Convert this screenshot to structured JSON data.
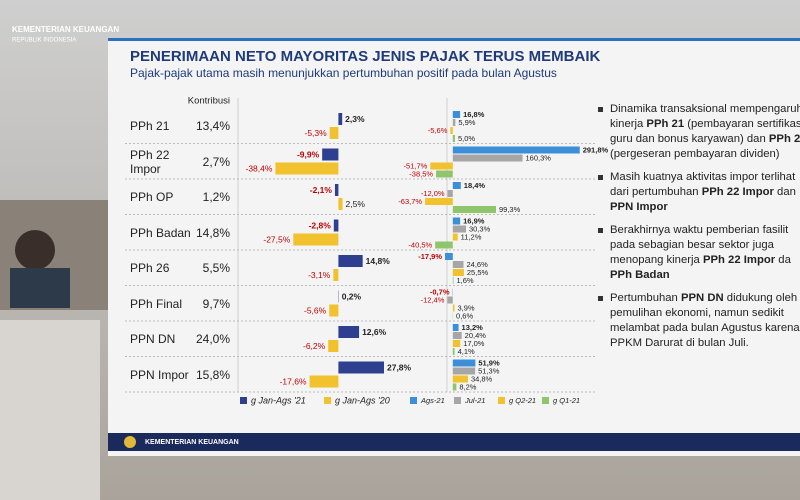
{
  "logo": {
    "line1": "KEMENTERIAN KEUANGAN",
    "line2": "REPUBLIK INDONESIA"
  },
  "slide": {
    "title": "PENERIMAAN NETO MAYORITAS JENIS PAJAK TERUS MEMBAIK",
    "subtitle": "Pajak-pajak utama masih menunjukkan pertumbuhan positif pada bulan Agustus",
    "contribution_header": "Kontribusi",
    "contributions": [
      "13,4%",
      "2,7%",
      "1,2%",
      "14,8%",
      "5,5%",
      "9,7%",
      "24,0%",
      "15,8%"
    ],
    "bullets": [
      [
        [
          "Dinamika transaksional mempengaruh"
        ],
        [
          "kinerja ",
          "PPh 21",
          " (pembayaran sertifikas"
        ],
        [
          "guru dan bonus karyawan) dan ",
          "PPh 2"
        ],
        [
          "(pergeseran pembayaran dividen)"
        ]
      ],
      [
        [
          "Masih kuatnya aktivitas impor terlihat"
        ],
        [
          "dari pertumbuhan ",
          "PPh 22 Impor",
          " dan"
        ],
        [
          "PPN Impor"
        ]
      ],
      [
        [
          "Berakhirnya waktu pemberian fasilit"
        ],
        [
          "pada sebagian besar sektor juga"
        ],
        [
          "menopang kinerja ",
          "PPh 22 Impor",
          " da"
        ],
        [
          "PPh Badan"
        ]
      ],
      [
        [
          "Pertumbuhan ",
          "PPN DN",
          " didukung oleh"
        ],
        [
          "pemulihan ekonomi, namun sedikit"
        ],
        [
          "melambat pada bulan Agustus karena"
        ],
        [
          "PPKM Darurat di bulan Juli."
        ]
      ]
    ],
    "footer": "KEMENTERIAN KEUANGAN"
  },
  "chart_data": [
    {
      "type": "bar",
      "orientation": "horizontal",
      "categories": [
        "PPh 21",
        "PPh 22 Impor",
        "PPh OP",
        "PPh Badan",
        "PPh 26",
        "PPh Final",
        "PPN DN",
        "PPN Impor"
      ],
      "xlim": [
        -60,
        65
      ],
      "series": [
        {
          "name": "g Jan-Ags '21",
          "color": "#2e3f8f",
          "values": [
            2.3,
            -9.9,
            -2.1,
            -2.8,
            14.8,
            0.2,
            12.6,
            27.8
          ],
          "value_labels": [
            "2,3%",
            "-9,9%",
            "-2,1%",
            "-2,8%",
            "14,8%",
            "0,2%",
            "12,6%",
            "27,8%"
          ]
        },
        {
          "name": "g Jan-Ags '20",
          "color": "#f2c12e",
          "values": [
            -5.3,
            -38.4,
            2.5,
            -27.5,
            -3.1,
            -5.6,
            -6.2,
            -17.6
          ],
          "value_labels": [
            "-5,3%",
            "-38,4%",
            "2,5%",
            "-27,5%",
            "-3,1%",
            "-5,6%",
            "-6,2%",
            "-17,6%"
          ]
        }
      ]
    },
    {
      "type": "bar",
      "orientation": "horizontal",
      "xlim": [
        -80,
        320
      ],
      "series": [
        {
          "name": "Ags-21",
          "color": "#3b8fd9",
          "values": [
            16.8,
            291.8,
            18.4,
            16.9,
            -17.9,
            -0.7,
            13.2,
            51.9
          ],
          "value_labels": [
            "16,8%",
            "291,8%",
            "18,4%",
            "16,9%",
            "-17,9%",
            "-0,7%",
            "13,2%",
            "51,9%"
          ]
        },
        {
          "name": "Jul-21",
          "color": "#a6a6a6",
          "values": [
            5.9,
            160.3,
            -12.0,
            30.3,
            24.6,
            -12.4,
            20.4,
            51.3
          ],
          "value_labels": [
            "5,9%",
            "160,3%",
            "-12,0%",
            "30,3%",
            "24,6%",
            "-12,4%",
            "20,4%",
            "51,3%"
          ]
        },
        {
          "name": "g Q2-21",
          "color": "#f2c12e",
          "values": [
            -5.6,
            -51.7,
            -63.7,
            11.2,
            25.5,
            3.9,
            17.0,
            34.8
          ],
          "value_labels": [
            "-5,6%",
            "-51,7%",
            "-63,7%",
            "11,2%",
            "25,5%",
            "3,9%",
            "17,0%",
            "34,8%"
          ]
        },
        {
          "name": "g Q1-21",
          "color": "#8fc66b",
          "values": [
            5.0,
            -38.5,
            99.3,
            -40.5,
            1.6,
            0.6,
            4.1,
            8.2
          ],
          "value_labels": [
            "5,0%",
            "-38,5%",
            "99,3%",
            "-40,5%",
            "1,6%",
            "0,6%",
            "4,1%",
            "8,2%"
          ]
        }
      ]
    }
  ]
}
